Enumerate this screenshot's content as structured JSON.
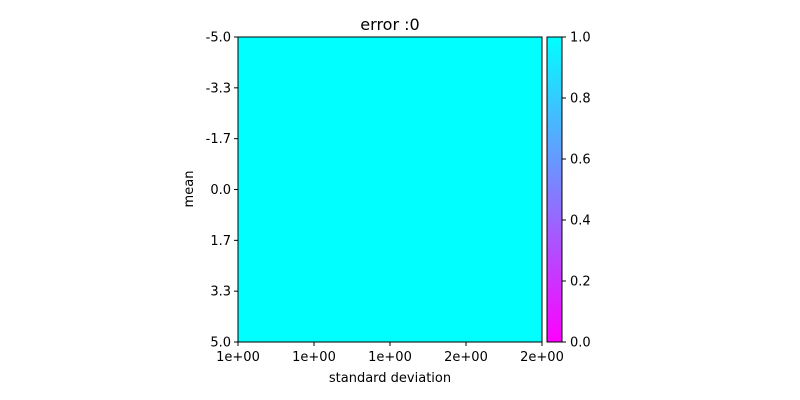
{
  "chart_data": {
    "type": "heatmap",
    "title": "error :0",
    "xlabel": "standard deviation",
    "ylabel": "mean",
    "x_tick_labels": [
      "1e+00",
      "1e+00",
      "1e+00",
      "2e+00",
      "2e+00"
    ],
    "y_tick_labels": [
      "-5.0",
      "-3.3",
      "-1.7",
      "0.0",
      "1.7",
      "3.3",
      "5.0"
    ],
    "ylim": [
      -5.0,
      5.0
    ],
    "y_inverted": true,
    "values": [
      [
        1.0
      ]
    ],
    "colorbar": {
      "colormap": "cool",
      "range": [
        0.0,
        1.0
      ],
      "tick_labels": [
        "0.0",
        "0.2",
        "0.4",
        "0.6",
        "0.8",
        "1.0"
      ],
      "ticks": [
        0.0,
        0.2,
        0.4,
        0.6,
        0.8,
        1.0
      ]
    },
    "colors": {
      "min": "#ff00ff",
      "max": "#00ffff"
    }
  }
}
